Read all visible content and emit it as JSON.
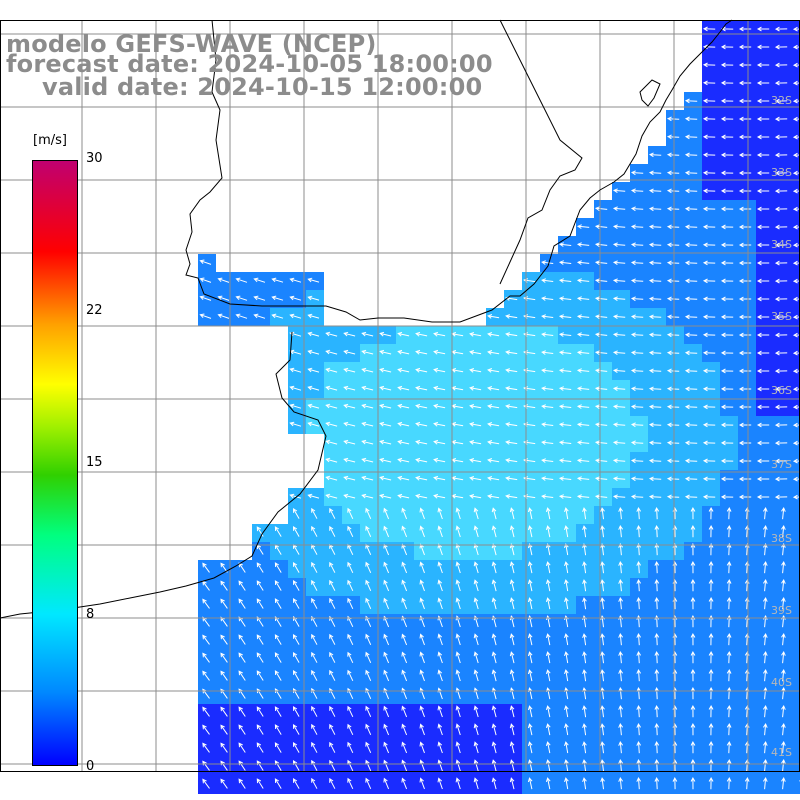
{
  "title": {
    "line1": "modelo GEFS-WAVE (NCEP)",
    "line2": "forecast date: 2024-10-05 18:00:00",
    "line3": "valid date: 2024-10-15 12:00:00"
  },
  "colorbar": {
    "unit": "[m/s]",
    "ticks": [
      "30",
      "22",
      "15",
      "8",
      "0"
    ],
    "tick_values": [
      30,
      22,
      15,
      8,
      0
    ],
    "range": [
      0,
      30
    ],
    "colors": [
      "#0000ff",
      "#0088ff",
      "#00e8ff",
      "#00ff80",
      "#30d000",
      "#a0f000",
      "#ffff00",
      "#ffa000",
      "#ff0000",
      "#c00070"
    ]
  },
  "lat_labels": [
    "32S",
    "33S",
    "34S",
    "35S",
    "36S",
    "37S",
    "38S",
    "39S",
    "40S",
    "41S"
  ],
  "colors": {
    "ocean_dark": "#1a2cff",
    "ocean_mid": "#1a84ff",
    "ocean_light": "#2ab4ff",
    "ocean_pale": "#48d8ff",
    "land": "#ffffff",
    "grid": "#8c8c8c",
    "title_text": "#8c8c8c",
    "arrow": "#ffffff"
  }
}
